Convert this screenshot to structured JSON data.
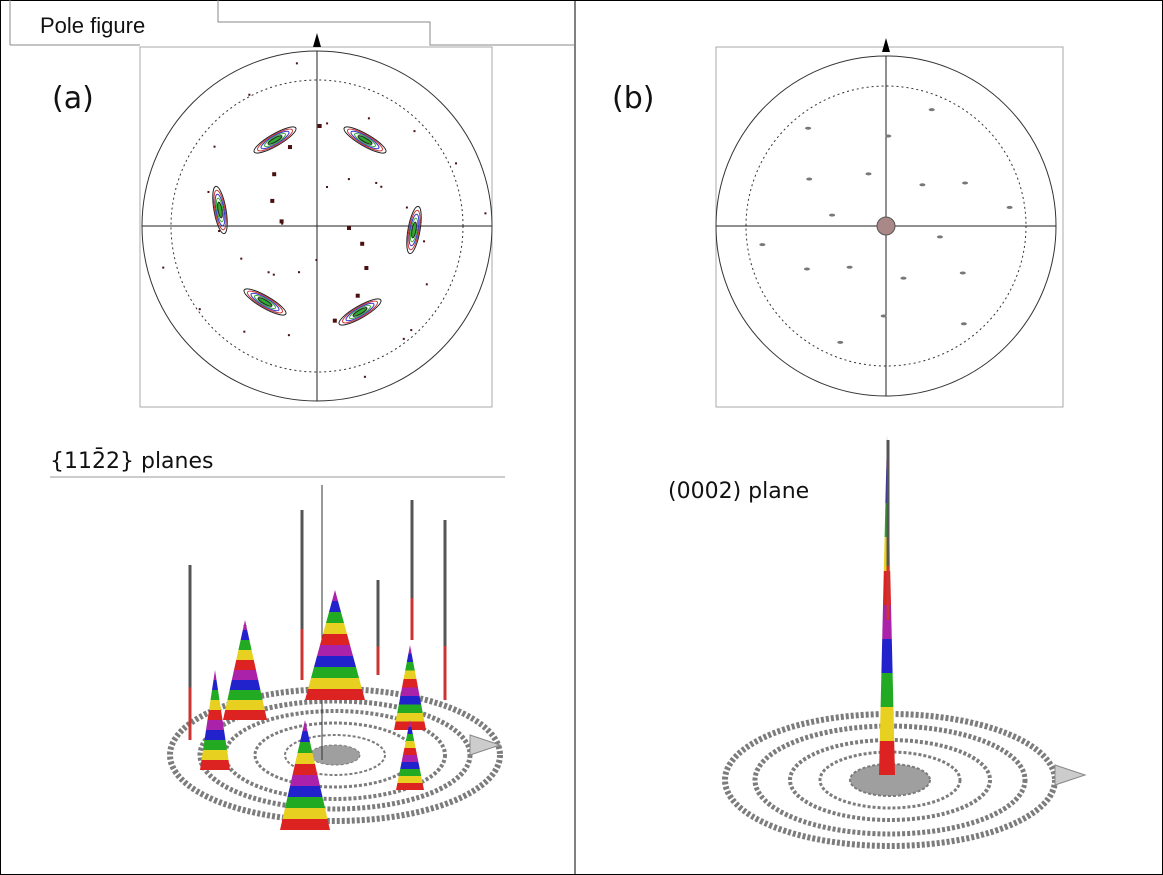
{
  "header": {
    "title": "Pole figure"
  },
  "panels": [
    {
      "label": "(a)",
      "caption": "{112̄2} planes"
    },
    {
      "label": "(b)",
      "caption": "(0002) plane"
    }
  ]
}
